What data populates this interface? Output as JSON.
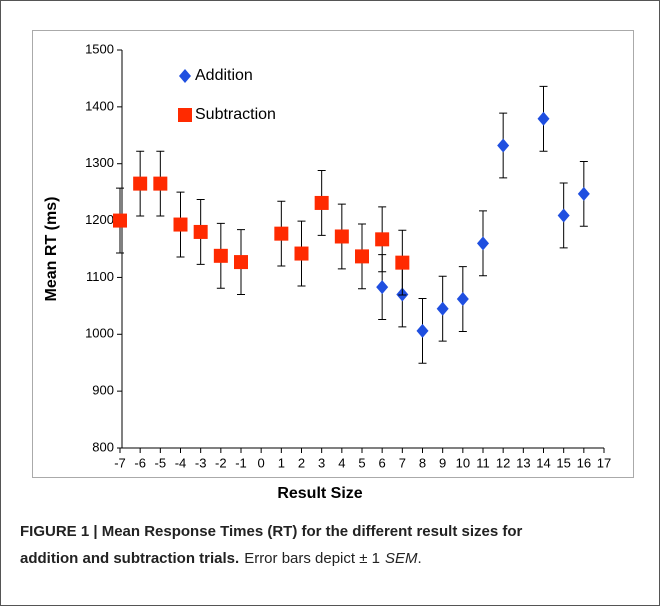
{
  "chart_data": {
    "type": "scatter",
    "x_label": "Result Size",
    "y_label": "Mean RT (ms)",
    "xlim": [
      -7,
      17
    ],
    "xticks": [
      -7,
      -6,
      -5,
      -4,
      -3,
      -2,
      -1,
      0,
      1,
      2,
      3,
      4,
      5,
      6,
      7,
      8,
      9,
      10,
      11,
      12,
      13,
      14,
      15,
      16,
      17
    ],
    "ylim": [
      800,
      1500
    ],
    "yticks": [
      800,
      900,
      1000,
      1100,
      1200,
      1300,
      1400,
      1500
    ],
    "legend": "upper left",
    "series": [
      {
        "name": "Addition",
        "color": "#1f4fe0",
        "marker": "diamond",
        "x": [
          6,
          7,
          8,
          9,
          10,
          11,
          12,
          14,
          15,
          16
        ],
        "values": [
          1083,
          1070,
          1006,
          1045,
          1062,
          1160,
          1332,
          1379,
          1209,
          1247
        ],
        "errors": [
          57,
          57,
          57,
          57,
          57,
          57,
          57,
          57,
          57,
          57
        ]
      },
      {
        "name": "Subtraction",
        "color": "#ff2a00",
        "marker": "square",
        "x": [
          -7,
          -6,
          -5,
          -4,
          -3,
          -2,
          -1,
          1,
          2,
          3,
          4,
          5,
          6,
          7
        ],
        "values": [
          1200,
          1265,
          1265,
          1193,
          1180,
          1138,
          1127,
          1177,
          1142,
          1231,
          1172,
          1137,
          1167,
          1126
        ],
        "errors": [
          57,
          57,
          57,
          57,
          57,
          57,
          57,
          57,
          57,
          57,
          57,
          57,
          57,
          57
        ]
      }
    ]
  },
  "caption": {
    "line1": "FIGURE 1 | Mean Response Times (RT) for the different result sizes for",
    "line2_bold": "addition and subtraction trials.",
    "line2_text": "Error bars depict ± 1",
    "line2_italic": "SEM",
    "line2_end": "."
  }
}
